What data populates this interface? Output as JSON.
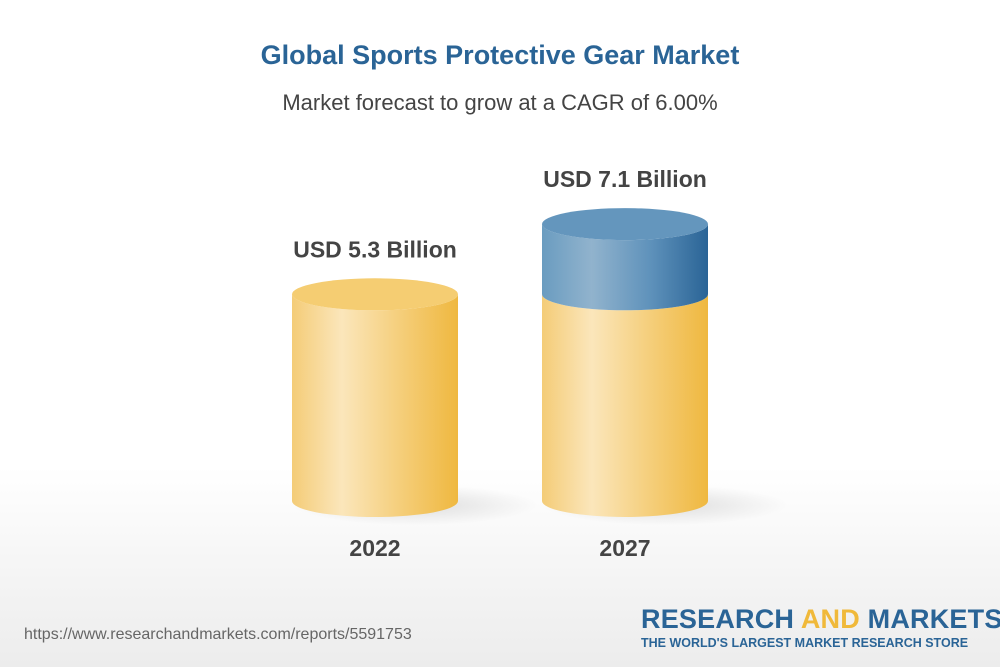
{
  "title": "Global Sports Protective Gear Market",
  "subtitle": "Market forecast to grow at a CAGR of 6.00%",
  "chart_data": {
    "type": "bar",
    "style": "3d-cylinder",
    "categories": [
      "2022",
      "2027"
    ],
    "values": [
      5.3,
      7.1
    ],
    "data_labels": [
      "USD 5.3 Billion",
      "USD 7.1 Billion"
    ],
    "unit": "USD Billion",
    "colors": {
      "base": "#f2c14e",
      "growth": "#2a6496"
    },
    "grid": false
  },
  "footer": {
    "url": "https://www.researchandmarkets.com/reports/5591753",
    "logo_part1": "RESEARCH ",
    "logo_part2": "AND",
    "logo_part3": " MARKETS",
    "logo_tagline": "THE WORLD'S LARGEST MARKET RESEARCH STORE"
  }
}
